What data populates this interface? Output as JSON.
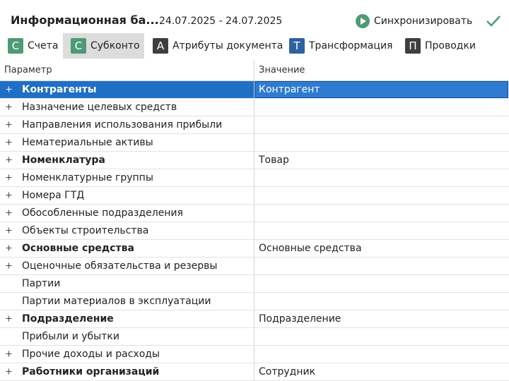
{
  "header": {
    "title": "Информационная ба...",
    "date_range": "24.07.2025 - 24.07.2025",
    "sync_button": "Синхронизировать"
  },
  "tabs": [
    {
      "icon": "С",
      "label": "Счета",
      "color": "#4e9a76",
      "selected": false
    },
    {
      "icon": "С",
      "label": "Субконто",
      "color": "#4e9a76",
      "selected": true
    },
    {
      "icon": "А",
      "label": "Атрибуты документа",
      "color": "#3f3f3f",
      "selected": false
    },
    {
      "icon": "Т",
      "label": "Трансформация",
      "color": "#2f62a0",
      "selected": false
    },
    {
      "icon": "П",
      "label": "Проводки",
      "color": "#3f3f3f",
      "selected": false
    }
  ],
  "table": {
    "columns": [
      "Параметр",
      "Значение"
    ],
    "selected_row": 0,
    "rows": [
      {
        "name": "Контрагенты",
        "value": "Контрагент",
        "bold": true,
        "expandable": true
      },
      {
        "name": "Назначение целевых средств",
        "value": null,
        "bold": false,
        "expandable": true
      },
      {
        "name": "Направления использования прибыли",
        "value": null,
        "bold": false,
        "expandable": true
      },
      {
        "name": "Нематериальные активы",
        "value": null,
        "bold": false,
        "expandable": true
      },
      {
        "name": "Номенклатура",
        "value": "Товар",
        "bold": true,
        "expandable": true
      },
      {
        "name": "Номенклатурные группы",
        "value": null,
        "bold": false,
        "expandable": true
      },
      {
        "name": "Номера ГТД",
        "value": null,
        "bold": false,
        "expandable": true
      },
      {
        "name": "Обособленные подразделения",
        "value": null,
        "bold": false,
        "expandable": true
      },
      {
        "name": "Объекты строительства",
        "value": null,
        "bold": false,
        "expandable": true
      },
      {
        "name": "Основные средства",
        "value": "Основные средства",
        "bold": true,
        "expandable": true
      },
      {
        "name": "Оценочные обязательства и резервы",
        "value": null,
        "bold": false,
        "expandable": true
      },
      {
        "name": "Партии",
        "value": null,
        "bold": false,
        "expandable": false
      },
      {
        "name": "Партии материалов в эксплуатации",
        "value": null,
        "bold": false,
        "expandable": false
      },
      {
        "name": "Подразделение",
        "value": "Подразделение",
        "bold": true,
        "expandable": true
      },
      {
        "name": "Прибыли и убытки",
        "value": null,
        "bold": false,
        "expandable": false
      },
      {
        "name": "Прочие доходы и расходы",
        "value": null,
        "bold": false,
        "expandable": true
      },
      {
        "name": "Работники организаций",
        "value": "Сотрудник",
        "bold": true,
        "expandable": true
      }
    ]
  }
}
